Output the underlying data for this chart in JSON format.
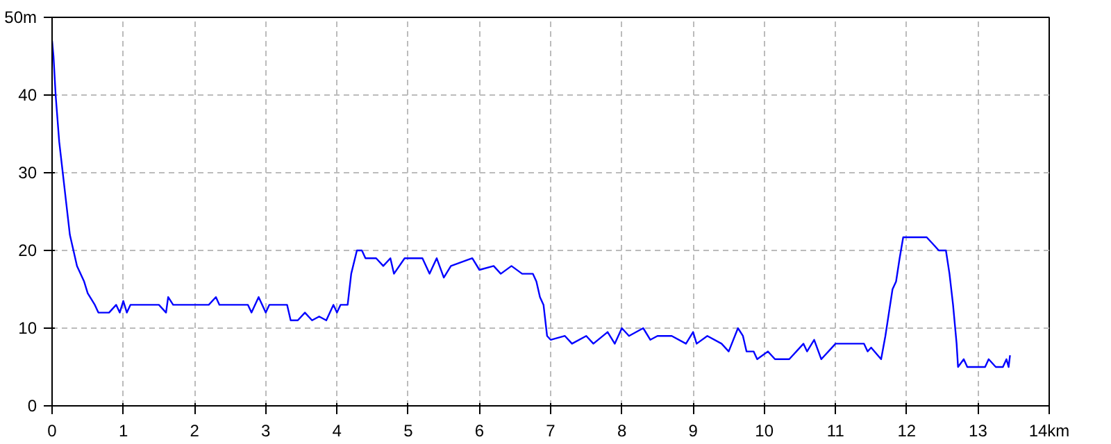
{
  "chart_data": {
    "type": "line",
    "x": [
      0,
      0.02,
      0.05,
      0.1,
      0.15,
      0.2,
      0.25,
      0.3,
      0.35,
      0.45,
      0.5,
      0.6,
      0.65,
      0.8,
      0.9,
      0.95,
      1.0,
      1.05,
      1.1,
      1.5,
      1.6,
      1.63,
      1.7,
      2.2,
      2.3,
      2.35,
      2.75,
      2.8,
      2.9,
      3.0,
      3.05,
      3.3,
      3.35,
      3.45,
      3.55,
      3.65,
      3.75,
      3.85,
      3.95,
      4.0,
      4.05,
      4.15,
      4.2,
      4.28,
      4.35,
      4.4,
      4.55,
      4.65,
      4.75,
      4.8,
      4.95,
      5.2,
      5.3,
      5.4,
      5.5,
      5.6,
      5.9,
      6.0,
      6.2,
      6.3,
      6.45,
      6.6,
      6.75,
      6.8,
      6.85,
      6.9,
      6.95,
      7.0,
      7.2,
      7.3,
      7.5,
      7.6,
      7.8,
      7.9,
      8.0,
      8.1,
      8.3,
      8.4,
      8.5,
      8.7,
      8.9,
      9.0,
      9.05,
      9.2,
      9.4,
      9.5,
      9.63,
      9.7,
      9.75,
      9.85,
      9.9,
      10.05,
      10.15,
      10.35,
      10.45,
      10.55,
      10.6,
      10.7,
      10.8,
      10.9,
      11.0,
      11.4,
      11.45,
      11.5,
      11.64,
      11.7,
      11.75,
      11.8,
      11.85,
      11.9,
      11.95,
      12.28,
      12.35,
      12.45,
      12.55,
      12.6,
      12.65,
      12.7,
      12.72,
      12.8,
      12.85,
      13.1,
      13.15,
      13.25,
      13.35,
      13.4,
      13.43,
      13.45
    ],
    "series": [
      {
        "color": "#0000ff",
        "values": [
          47,
          45,
          40,
          34,
          30,
          26,
          22,
          20,
          18,
          16,
          14.5,
          13,
          12,
          12,
          13,
          12,
          13.5,
          12,
          13,
          13,
          12,
          14,
          13,
          13,
          14,
          13,
          13,
          12,
          14,
          12,
          13,
          13,
          11,
          11,
          12,
          11,
          11.5,
          11,
          13,
          12,
          13,
          13,
          17,
          20,
          20,
          19,
          19,
          18,
          19,
          17,
          19,
          19,
          17,
          19,
          16.5,
          18,
          19,
          17.5,
          18,
          17,
          18,
          17,
          17,
          16,
          14,
          13,
          9,
          8.5,
          9,
          8,
          9,
          8,
          9.5,
          8,
          10,
          9,
          10,
          8.5,
          9,
          9,
          8,
          9.5,
          8,
          9,
          8,
          7,
          10,
          9,
          7,
          7,
          6,
          7,
          6,
          6,
          7,
          8,
          7,
          8.5,
          6,
          7,
          8,
          8,
          7,
          7.5,
          6,
          9,
          12,
          15,
          16,
          19,
          21.7,
          21.7,
          21,
          20,
          20,
          17,
          13,
          8,
          5,
          6,
          5,
          5,
          6,
          5,
          5,
          6,
          5,
          6.5
        ]
      }
    ],
    "xlim": [
      0,
      14
    ],
    "ylim": [
      0,
      50
    ],
    "xticks": [
      0,
      1,
      2,
      3,
      4,
      5,
      6,
      7,
      8,
      9,
      10,
      11,
      12,
      13,
      {
        "value": 14,
        "label": "14km"
      }
    ],
    "yticks": [
      0,
      10,
      20,
      30,
      40,
      {
        "value": 50,
        "label": "50m"
      }
    ],
    "grid": true,
    "marker": "none",
    "line_style": "solid"
  }
}
